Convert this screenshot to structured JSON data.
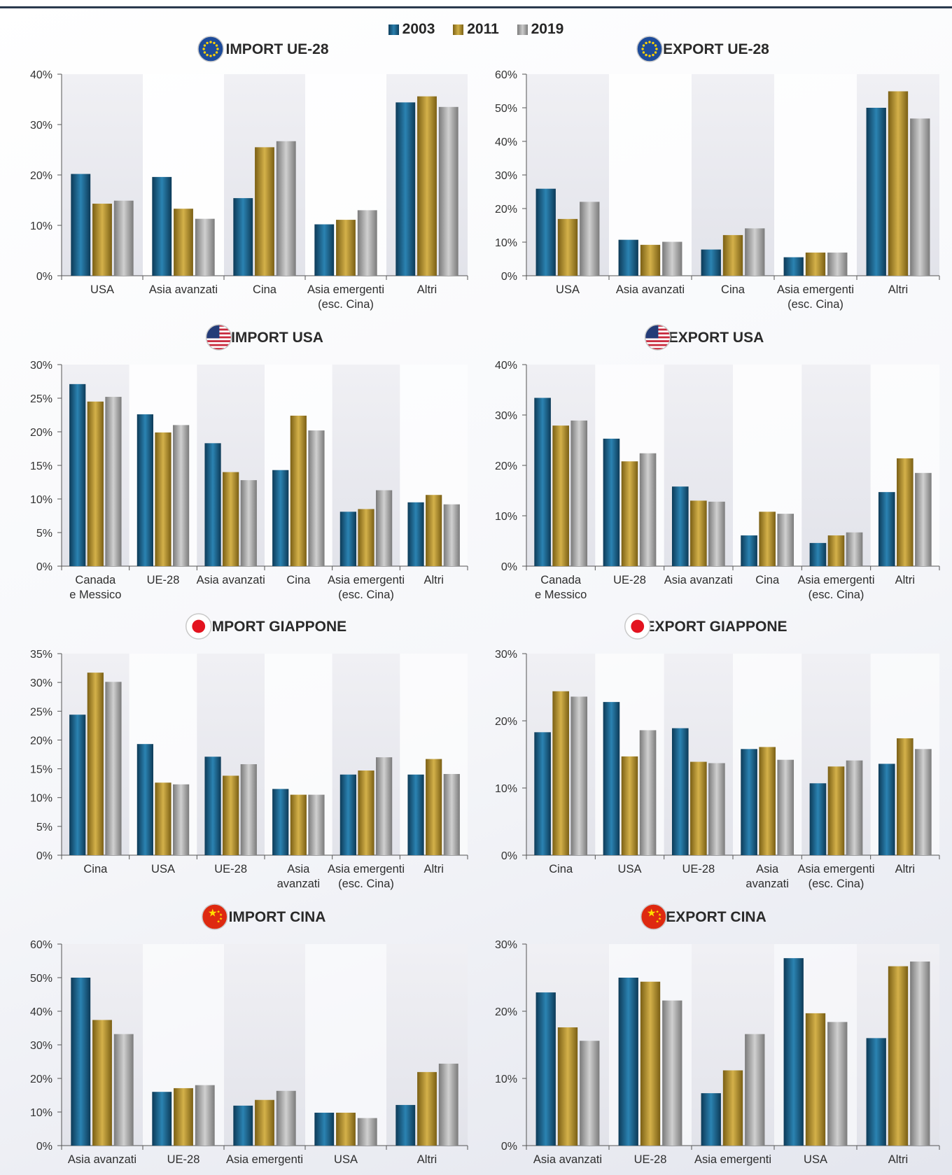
{
  "legend": {
    "items": [
      {
        "label": "2003",
        "color": "#1d5e85"
      },
      {
        "label": "2011",
        "color": "#a8882a"
      },
      {
        "label": "2019",
        "color": "#9d9d9d"
      }
    ]
  },
  "colors": {
    "band_even": "#e9eaef",
    "band_odd": "#ffffff",
    "axis": "#555555"
  },
  "chart_data": [
    {
      "type": "bar",
      "title": "IMPORT UE-28",
      "flag": "eu-flag-icon",
      "categories": [
        [
          "USA"
        ],
        [
          "Asia avanzati"
        ],
        [
          "Cina"
        ],
        [
          "Asia emergenti",
          "(esc. Cina)"
        ],
        [
          "Altri"
        ]
      ],
      "ylim": [
        0,
        40
      ],
      "yticks": [
        "0%",
        "10%",
        "20%",
        "30%",
        "40%"
      ],
      "series": [
        {
          "name": "2003",
          "values": [
            20.2,
            19.6,
            15.4,
            10.2,
            34.4
          ]
        },
        {
          "name": "2011",
          "values": [
            14.3,
            13.3,
            25.5,
            11.1,
            35.6
          ]
        },
        {
          "name": "2019",
          "values": [
            14.9,
            11.3,
            26.7,
            13.0,
            33.5
          ]
        }
      ]
    },
    {
      "type": "bar",
      "title": "EXPORT UE-28",
      "flag": "eu-flag-icon",
      "categories": [
        [
          "USA"
        ],
        [
          "Asia avanzati"
        ],
        [
          "Cina"
        ],
        [
          "Asia emergenti",
          "(esc. Cina)"
        ],
        [
          "Altri"
        ]
      ],
      "ylim": [
        0,
        60
      ],
      "yticks": [
        "0%",
        "10%",
        "20%",
        "30%",
        "40%",
        "50%",
        "60%"
      ],
      "series": [
        {
          "name": "2003",
          "values": [
            25.9,
            10.7,
            7.8,
            5.5,
            50.0
          ]
        },
        {
          "name": "2011",
          "values": [
            16.9,
            9.2,
            12.1,
            6.9,
            54.9
          ]
        },
        {
          "name": "2019",
          "values": [
            22.0,
            10.1,
            14.1,
            6.9,
            46.8
          ]
        }
      ]
    },
    {
      "type": "bar",
      "title": "IMPORT USA",
      "flag": "us-flag-icon",
      "categories": [
        [
          "Canada",
          "e Messico"
        ],
        [
          "UE-28"
        ],
        [
          "Asia avanzati"
        ],
        [
          "Cina"
        ],
        [
          "Asia emergenti",
          "(esc. Cina)"
        ],
        [
          "Altri"
        ]
      ],
      "ylim": [
        0,
        30
      ],
      "yticks": [
        "0%",
        "5%",
        "10%",
        "15%",
        "20%",
        "25%",
        "30%"
      ],
      "series": [
        {
          "name": "2003",
          "values": [
            27.1,
            22.6,
            18.3,
            14.3,
            8.1,
            9.5
          ]
        },
        {
          "name": "2011",
          "values": [
            24.5,
            19.9,
            14.0,
            22.4,
            8.5,
            10.6
          ]
        },
        {
          "name": "2019",
          "values": [
            25.2,
            21.0,
            12.8,
            20.2,
            11.3,
            9.2
          ]
        }
      ]
    },
    {
      "type": "bar",
      "title": "EXPORT USA",
      "flag": "us-flag-icon",
      "categories": [
        [
          "Canada",
          "e Messico"
        ],
        [
          "UE-28"
        ],
        [
          "Asia avanzati"
        ],
        [
          "Cina"
        ],
        [
          "Asia emergenti",
          "(esc. Cina)"
        ],
        [
          "Altri"
        ]
      ],
      "ylim": [
        0,
        40
      ],
      "yticks": [
        "0%",
        "10%",
        "20%",
        "30%",
        "40%"
      ],
      "series": [
        {
          "name": "2003",
          "values": [
            33.4,
            25.3,
            15.8,
            6.1,
            4.6,
            14.7
          ]
        },
        {
          "name": "2011",
          "values": [
            27.9,
            20.8,
            13.0,
            10.8,
            6.1,
            21.4
          ]
        },
        {
          "name": "2019",
          "values": [
            28.9,
            22.4,
            12.8,
            10.4,
            6.7,
            18.5
          ]
        }
      ]
    },
    {
      "type": "bar",
      "title": "IMPORT GIAPPONE",
      "flag": "japan-flag-icon",
      "categories": [
        [
          "Cina"
        ],
        [
          "USA"
        ],
        [
          "UE-28"
        ],
        [
          "Asia",
          "avanzati"
        ],
        [
          "Asia emergenti",
          "(esc. Cina)"
        ],
        [
          "Altri"
        ]
      ],
      "ylim": [
        0,
        35
      ],
      "yticks": [
        "0%",
        "5%",
        "10%",
        "15%",
        "20%",
        "25%",
        "30%",
        "35%"
      ],
      "series": [
        {
          "name": "2003",
          "values": [
            24.4,
            19.3,
            17.1,
            11.5,
            14.0,
            14.0
          ]
        },
        {
          "name": "2011",
          "values": [
            31.7,
            12.6,
            13.8,
            10.5,
            14.7,
            16.7
          ]
        },
        {
          "name": "2019",
          "values": [
            30.1,
            12.3,
            15.8,
            10.5,
            17.0,
            14.1
          ]
        }
      ]
    },
    {
      "type": "bar",
      "title": "EXPORT GIAPPONE",
      "flag": "japan-flag-icon",
      "categories": [
        [
          "Cina"
        ],
        [
          "USA"
        ],
        [
          "UE-28"
        ],
        [
          "Asia",
          "avanzati"
        ],
        [
          "Asia emergenti",
          "(esc. Cina)"
        ],
        [
          "Altri"
        ]
      ],
      "ylim": [
        0,
        30
      ],
      "yticks": [
        "0%",
        "10%",
        "20%",
        "30%"
      ],
      "series": [
        {
          "name": "2003",
          "values": [
            18.3,
            22.8,
            18.9,
            15.8,
            10.7,
            13.6
          ]
        },
        {
          "name": "2011",
          "values": [
            24.4,
            14.7,
            13.9,
            16.1,
            13.2,
            17.4
          ]
        },
        {
          "name": "2019",
          "values": [
            23.6,
            18.6,
            13.7,
            14.2,
            14.1,
            15.8
          ]
        }
      ]
    },
    {
      "type": "bar",
      "title": "IMPORT CINA",
      "flag": "china-flag-icon",
      "categories": [
        [
          "Asia avanzati"
        ],
        [
          "UE-28"
        ],
        [
          "Asia emergenti"
        ],
        [
          "USA"
        ],
        [
          "Altri"
        ]
      ],
      "ylim": [
        0,
        60
      ],
      "yticks": [
        "0%",
        "10%",
        "20%",
        "30%",
        "40%",
        "50%",
        "60%"
      ],
      "series": [
        {
          "name": "2003",
          "values": [
            50.0,
            16.0,
            11.9,
            9.8,
            12.1
          ]
        },
        {
          "name": "2011",
          "values": [
            37.4,
            17.1,
            13.6,
            9.8,
            21.9
          ]
        },
        {
          "name": "2019",
          "values": [
            33.2,
            18.0,
            16.3,
            8.2,
            24.4
          ]
        }
      ]
    },
    {
      "type": "bar",
      "title": "EXPORT CINA",
      "flag": "china-flag-icon",
      "categories": [
        [
          "Asia avanzati"
        ],
        [
          "UE-28"
        ],
        [
          "Asia emergenti"
        ],
        [
          "USA"
        ],
        [
          "Altri"
        ]
      ],
      "ylim": [
        0,
        30
      ],
      "yticks": [
        "0%",
        "10%",
        "20%",
        "30%"
      ],
      "series": [
        {
          "name": "2003",
          "values": [
            22.8,
            25.0,
            7.8,
            27.9,
            16.0
          ]
        },
        {
          "name": "2011",
          "values": [
            17.6,
            24.4,
            11.2,
            19.7,
            26.7
          ]
        },
        {
          "name": "2019",
          "values": [
            15.6,
            21.6,
            16.6,
            18.4,
            27.4
          ]
        }
      ]
    }
  ]
}
